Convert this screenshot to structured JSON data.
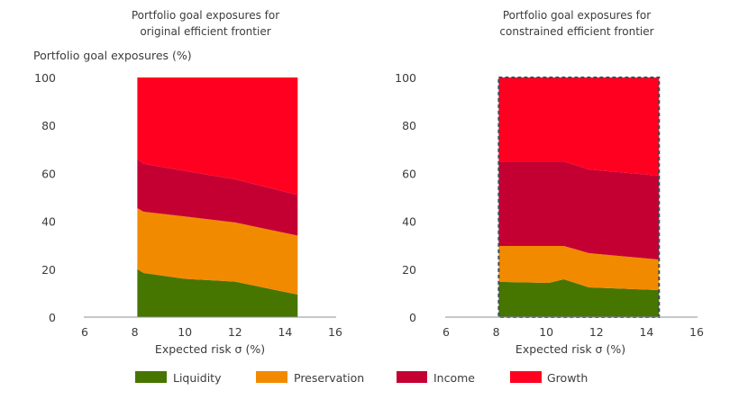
{
  "ylabel": "Portfolio goal exposures (%)",
  "legend": [
    {
      "label": "Liquidity",
      "color": "#467500"
    },
    {
      "label": "Preservation",
      "color": "#f28a00"
    },
    {
      "label": "Income",
      "color": "#c40033"
    },
    {
      "label": "Growth",
      "color": "#ff0021"
    }
  ],
  "chart_data": [
    {
      "type": "area",
      "stacked": true,
      "title_line1": "Portfolio goal exposures for",
      "title_line2": "original efficient frontier",
      "xlabel": "Expected risk σ (%)",
      "ylabel": "Portfolio goal exposures (%)",
      "xlim": [
        6,
        16
      ],
      "ylim": [
        0,
        100
      ],
      "xticks": [
        6,
        8,
        10,
        12,
        14,
        16
      ],
      "yticks": [
        0,
        20,
        40,
        60,
        80,
        100
      ],
      "x": [
        8.1,
        8.35,
        10,
        12,
        14.5
      ],
      "series": [
        {
          "name": "Liquidity",
          "values": [
            20,
            18.4,
            16,
            14.8,
            9.4
          ]
        },
        {
          "name": "Preservation",
          "values": [
            25.5,
            25.6,
            26,
            24.7,
            24.6
          ]
        },
        {
          "name": "Income",
          "values": [
            20.5,
            20,
            19,
            18,
            17
          ]
        },
        {
          "name": "Growth",
          "values": [
            34,
            36,
            39,
            42.5,
            49
          ]
        }
      ],
      "dashed_border": false
    },
    {
      "type": "area",
      "stacked": true,
      "title_line1": "Portfolio goal exposures for",
      "title_line2": "constrained efficient frontier",
      "xlabel": "Expected risk σ (%)",
      "xlim": [
        6,
        16
      ],
      "ylim": [
        0,
        100
      ],
      "xticks": [
        6,
        8,
        10,
        12,
        14,
        16
      ],
      "yticks": [
        0,
        20,
        40,
        60,
        80,
        100
      ],
      "x": [
        8.1,
        10.1,
        10.7,
        11.7,
        14.5
      ],
      "series": [
        {
          "name": "Liquidity",
          "values": [
            14.7,
            14.3,
            15.8,
            12.4,
            11.3
          ]
        },
        {
          "name": "Preservation",
          "values": [
            15,
            15.4,
            13.9,
            14.3,
            12.7
          ]
        },
        {
          "name": "Income",
          "values": [
            35.3,
            35.3,
            35.3,
            34.9,
            35
          ]
        },
        {
          "name": "Growth",
          "values": [
            35,
            35,
            35,
            38.4,
            41
          ]
        }
      ],
      "dashed_border": true
    }
  ]
}
